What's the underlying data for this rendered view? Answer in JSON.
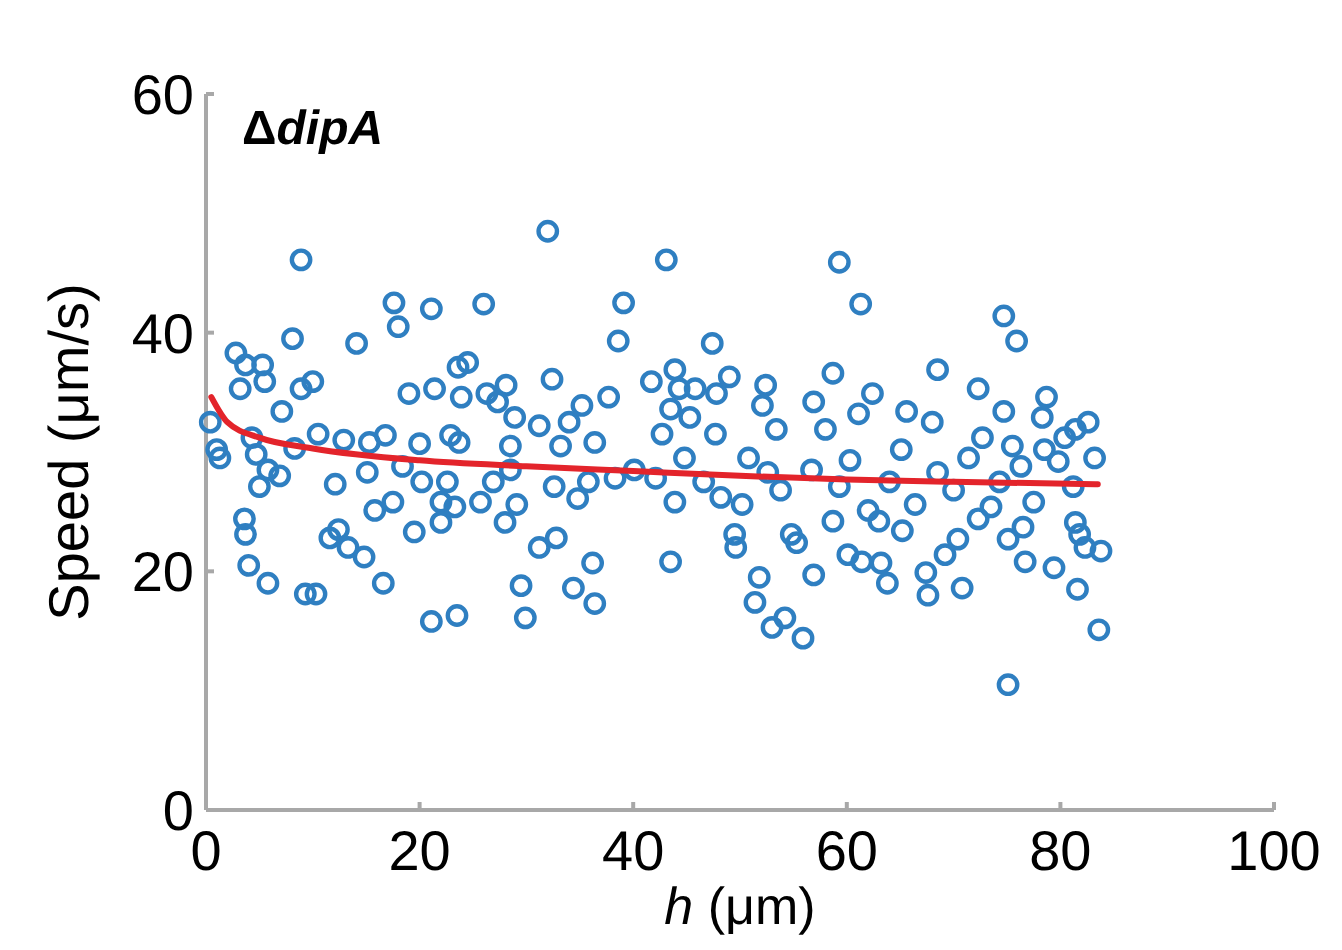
{
  "chart_data": {
    "type": "scatter",
    "title": "ΔdipA",
    "xlabel": "h (μm)",
    "ylabel": "Speed (μm/s)",
    "xlim": [
      0,
      100
    ],
    "ylim": [
      0,
      60
    ],
    "xticks": [
      0,
      20,
      40,
      60,
      80,
      100
    ],
    "yticks": [
      0,
      20,
      40,
      60
    ],
    "grid": false,
    "series": [
      {
        "marker": "circle",
        "color": "#2f7fc1",
        "x": [
          0.4,
          1.0,
          1.3,
          2.8,
          3.2,
          3.7,
          5.3,
          5.5,
          4.3,
          4.7,
          5.0,
          5.8,
          3.6,
          3.7,
          4.0,
          5.8,
          7.1,
          6.9,
          8.1,
          8.9,
          8.9,
          10.0,
          9.3,
          10.3,
          8.3,
          10.5,
          11.6,
          12.4,
          12.1,
          13.3,
          14.8,
          14.1,
          12.9,
          15.3,
          16.8,
          15.1,
          15.8,
          16.6,
          17.6,
          18.0,
          17.5,
          18.4,
          19.0,
          19.5,
          20.0,
          20.2,
          21.1,
          21.4,
          21.1,
          22.0,
          22.0,
          22.9,
          22.6,
          23.6,
          23.9,
          24.5,
          23.5,
          23.7,
          23.3,
          26.0,
          25.7,
          26.3,
          26.9,
          27.3,
          28.0,
          28.1,
          28.5,
          28.9,
          29.1,
          28.5,
          29.5,
          29.9,
          31.2,
          31.2,
          32.0,
          32.4,
          32.8,
          32.6,
          33.2,
          34.0,
          34.4,
          34.8,
          35.2,
          35.8,
          36.4,
          36.2,
          36.4,
          37.7,
          38.6,
          39.1,
          38.3,
          40.1,
          41.7,
          42.1,
          43.1,
          42.7,
          43.9,
          43.5,
          43.9,
          43.5,
          44.3,
          44.8,
          45.3,
          45.8,
          46.6,
          47.4,
          47.8,
          47.7,
          48.2,
          49.0,
          49.5,
          49.6,
          50.2,
          50.8,
          51.4,
          51.8,
          52.4,
          52.1,
          52.6,
          53.4,
          53.0,
          54.2,
          53.8,
          54.8,
          55.3,
          55.9,
          56.7,
          56.9,
          56.9,
          58.0,
          58.7,
          59.3,
          58.7,
          59.3,
          60.3,
          60.1,
          61.3,
          61.1,
          61.4,
          62.4,
          62.0,
          63.0,
          63.2,
          63.8,
          64.0,
          65.1,
          65.6,
          65.2,
          66.4,
          67.4,
          67.6,
          68.0,
          68.5,
          68.5,
          69.2,
          70.4,
          70.8,
          70.0,
          71.4,
          72.3,
          72.7,
          72.3,
          73.5,
          74.3,
          74.7,
          74.7,
          75.1,
          75.1,
          75.9,
          75.5,
          76.5,
          76.7,
          77.5,
          76.3,
          78.3,
          78.7,
          78.5,
          79.4,
          79.8,
          80.4,
          81.4,
          81.2,
          81.4,
          81.8,
          81.6,
          82.6,
          82.3,
          83.2,
          83.8,
          83.6
        ],
        "values": [
          32.5,
          30.2,
          29.5,
          38.3,
          35.3,
          37.3,
          37.3,
          35.9,
          31.2,
          29.8,
          27.1,
          28.5,
          24.4,
          23.1,
          20.5,
          19.0,
          33.4,
          28.0,
          39.5,
          46.1,
          35.3,
          35.9,
          18.1,
          18.1,
          30.3,
          31.5,
          22.8,
          23.5,
          27.3,
          22.0,
          21.2,
          39.1,
          31.0,
          30.8,
          31.4,
          28.3,
          25.1,
          19.0,
          42.5,
          40.5,
          25.8,
          28.8,
          34.9,
          23.3,
          30.7,
          27.5,
          42.0,
          35.3,
          15.8,
          25.8,
          24.1,
          31.4,
          27.5,
          37.1,
          34.6,
          37.5,
          16.3,
          30.8,
          25.4,
          42.4,
          25.8,
          34.9,
          27.5,
          34.2,
          24.1,
          35.6,
          30.5,
          32.9,
          25.6,
          28.5,
          18.8,
          16.1,
          32.2,
          22.0,
          48.5,
          36.1,
          22.8,
          27.1,
          30.5,
          32.5,
          18.6,
          26.1,
          33.9,
          27.5,
          30.8,
          20.7,
          17.3,
          34.6,
          39.3,
          42.5,
          27.8,
          28.5,
          35.9,
          27.8,
          46.1,
          31.5,
          36.9,
          33.6,
          25.8,
          20.8,
          35.3,
          29.5,
          32.9,
          35.3,
          27.5,
          39.1,
          34.9,
          31.5,
          26.2,
          36.3,
          23.1,
          22.0,
          25.6,
          29.5,
          17.4,
          19.5,
          35.6,
          33.9,
          28.3,
          31.9,
          15.3,
          16.1,
          26.8,
          23.1,
          22.4,
          14.4,
          28.5,
          19.7,
          34.2,
          31.9,
          36.6,
          45.9,
          24.2,
          27.1,
          29.3,
          21.4,
          42.4,
          33.2,
          20.8,
          34.9,
          25.1,
          24.2,
          20.7,
          19.0,
          27.5,
          30.2,
          33.4,
          23.4,
          25.6,
          19.9,
          18.0,
          32.5,
          36.9,
          28.3,
          21.4,
          22.7,
          18.6,
          26.8,
          29.5,
          35.3,
          31.2,
          24.4,
          25.4,
          27.5,
          41.4,
          33.4,
          22.7,
          10.5,
          39.3,
          30.5,
          23.7,
          20.8,
          25.8,
          28.8,
          32.9,
          34.6,
          30.2,
          20.3,
          29.2,
          31.2,
          31.9,
          27.1,
          24.1,
          23.1,
          18.5,
          32.5,
          22.0,
          29.5,
          21.7,
          15.1
        ]
      },
      {
        "type": "line",
        "marker": "none",
        "line_style": "solid",
        "color": "#e3242b",
        "x": [
          0.5,
          2,
          5,
          10,
          20,
          30,
          40,
          50,
          60,
          70,
          83.5
        ],
        "values": [
          34.6,
          32.5,
          31.2,
          30.3,
          29.3,
          28.8,
          28.4,
          28.0,
          27.7,
          27.5,
          27.3
        ]
      }
    ]
  }
}
